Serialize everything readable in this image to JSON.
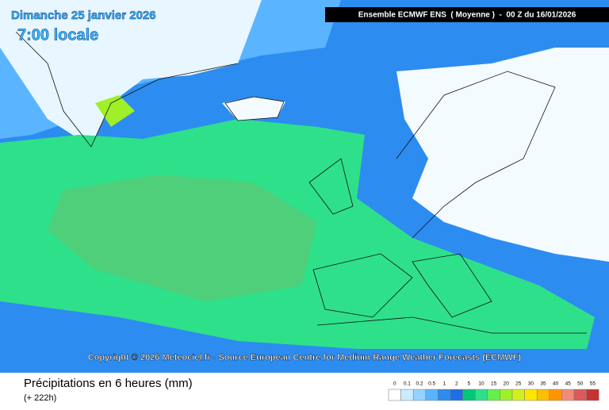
{
  "header": {
    "date": "Dimanche 25 janvier 2026",
    "time": "7:00 locale",
    "model": "Ensemble ECMWF ENS  ( Moyenne )  -  00 Z du 16/01/2026"
  },
  "copyright": "Copyright © 2026 Meteociel.fr - Source European Centre for Medium-Range Weather Forecasts (ECMWF)",
  "footer": {
    "title": "Précipitations en 6 heures (mm)",
    "subtitle": "(+ 222h)"
  },
  "legend": {
    "labels": [
      0,
      0.1,
      0.2,
      0.5,
      1,
      2,
      5,
      10,
      15,
      20,
      25,
      30,
      35,
      40,
      45,
      50,
      55
    ],
    "colors": [
      "#ffffff",
      "#c8ecff",
      "#96d2ff",
      "#5ab4ff",
      "#2d8cf0",
      "#1e6ee6",
      "#00c878",
      "#2ee08a",
      "#64f050",
      "#a0f028",
      "#d2f01e",
      "#ffe600",
      "#ffbe00",
      "#ff9600",
      "#f08c78",
      "#dc5a5a",
      "#c83232"
    ]
  }
}
